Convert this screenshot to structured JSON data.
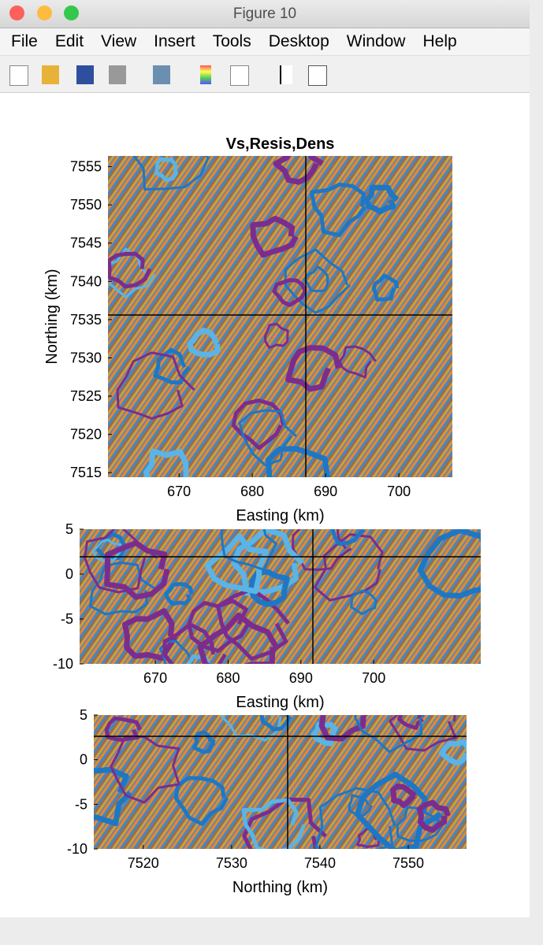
{
  "window": {
    "title": "Figure 10",
    "menu": [
      "File",
      "Edit",
      "View",
      "Insert",
      "Tools",
      "Desktop",
      "Window",
      "Help"
    ]
  },
  "chart_data": [
    {
      "type": "contour",
      "title": "Vs,Resis,Dens",
      "xlabel": "Easting (km)",
      "ylabel": "Northing (km)",
      "xlim": [
        660.3,
        707.3
      ],
      "ylim": [
        7514.4,
        7556.4
      ],
      "xticks": [
        670,
        680,
        690,
        700
      ],
      "yticks": [
        7515,
        7520,
        7525,
        7530,
        7535,
        7540,
        7545,
        7550,
        7555
      ]
    },
    {
      "type": "contour",
      "xlabel": "Easting (km)",
      "xlim": [
        659.6,
        714.7
      ],
      "ylim": [
        -10,
        5
      ],
      "xticks": [
        670,
        680,
        690,
        700
      ],
      "yticks": [
        -10,
        -5,
        0,
        5
      ]
    },
    {
      "type": "contour",
      "xlabel": "Northing (km)",
      "xlim": [
        7514.4,
        7556.6
      ],
      "ylim": [
        -10,
        5
      ],
      "xticks": [
        7520,
        7530,
        7540,
        7550
      ],
      "yticks": [
        -10,
        -5,
        0,
        5
      ]
    }
  ]
}
